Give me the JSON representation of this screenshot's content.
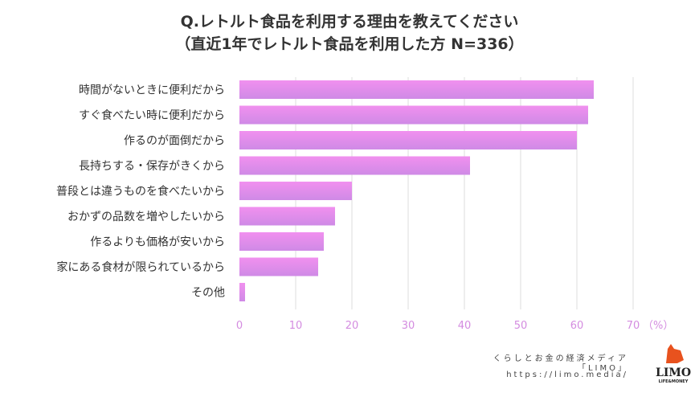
{
  "chart_data": {
    "type": "bar",
    "orientation": "horizontal",
    "title": "Q.レトルト食品を利用する理由を教えてください",
    "subtitle": "（直近1年でレトルト食品を利用した方 N=336）",
    "categories": [
      "時間がないときに便利だから",
      "すぐ食べたい時に便利だから",
      "作るのが面倒だから",
      "長持ちする・保存がきくから",
      "普段とは違うものを食べたいから",
      "おかずの品数を増やしたいから",
      "作るよりも価格が安いから",
      "家にある食材が限られているから",
      "その他"
    ],
    "values": [
      63,
      62,
      60,
      41,
      20,
      17,
      15,
      14,
      1
    ],
    "xlim": [
      0,
      70
    ],
    "xticks": [
      0,
      10,
      20,
      30,
      40,
      50,
      60,
      70
    ],
    "xunit": "（%）",
    "grid": true,
    "colors": {
      "bar_top": "#f190ef",
      "bar_bottom": "#cf8ae6",
      "tick": "#d48ce0",
      "grid": "#dddddd"
    }
  },
  "footer": {
    "line1": "くらしとお金の経済メディア",
    "line2": "「LIMO」",
    "line3": "https://limo.media/",
    "logo_text": "LIMO",
    "logo_sub": "LIFE&MONEY"
  }
}
